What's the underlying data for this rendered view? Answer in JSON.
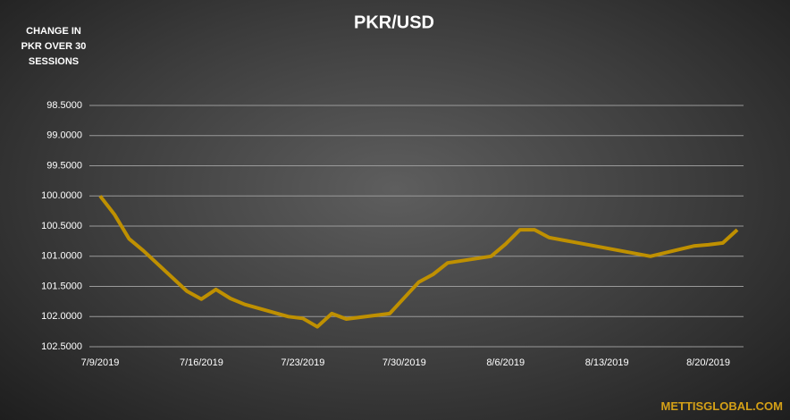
{
  "chart_data": {
    "type": "line",
    "title": "PKR/USD",
    "y_label": "CHANGE IN PKR OVER 30 SESSIONS",
    "source": "METTISGLOBAL.COM",
    "x": [
      "7/9/2019",
      "7/10/2019",
      "7/11/2019",
      "7/12/2019",
      "7/15/2019",
      "7/16/2019",
      "7/17/2019",
      "7/18/2019",
      "7/19/2019",
      "7/22/2019",
      "7/23/2019",
      "7/24/2019",
      "7/25/2019",
      "7/26/2019",
      "7/29/2019",
      "7/30/2019",
      "7/31/2019",
      "8/1/2019",
      "8/2/2019",
      "8/5/2019",
      "8/6/2019",
      "8/7/2019",
      "8/8/2019",
      "8/9/2019",
      "8/16/2019",
      "8/19/2019",
      "8/20/2019",
      "8/21/2019",
      "8/22/2019"
    ],
    "series": [
      {
        "name": "PKR/USD",
        "color": "#bf9000",
        "values": [
          100.0,
          100.31,
          100.71,
          100.91,
          101.58,
          101.71,
          101.55,
          101.7,
          101.8,
          102.0,
          102.03,
          102.17,
          101.95,
          102.04,
          101.95,
          101.69,
          101.43,
          101.3,
          101.11,
          101.0,
          100.8,
          100.56,
          100.56,
          100.69,
          101.0,
          100.83,
          100.81,
          100.78,
          100.56
        ]
      }
    ],
    "xlim": [
      "7/9/2019",
      "8/22/2019"
    ],
    "xticks": [
      "7/9/2019",
      "7/16/2019",
      "7/23/2019",
      "7/30/2019",
      "8/6/2019",
      "8/13/2019",
      "8/20/2019"
    ],
    "ylim": [
      98.5,
      102.5
    ],
    "y_inverted": true,
    "yticks": [
      {
        "value": 98.5,
        "label": "98.5000"
      },
      {
        "value": 99,
        "label": "99.0000"
      },
      {
        "value": 99.5,
        "label": "99.5000"
      },
      {
        "value": 100,
        "label": "100.0000"
      },
      {
        "value": 100.5,
        "label": "100.5000"
      },
      {
        "value": 101,
        "label": "101.0000"
      },
      {
        "value": 101.5,
        "label": "101.5000"
      },
      {
        "value": 102,
        "label": "102.0000"
      },
      {
        "value": 102.5,
        "label": "102.5000"
      }
    ],
    "grid": true
  }
}
